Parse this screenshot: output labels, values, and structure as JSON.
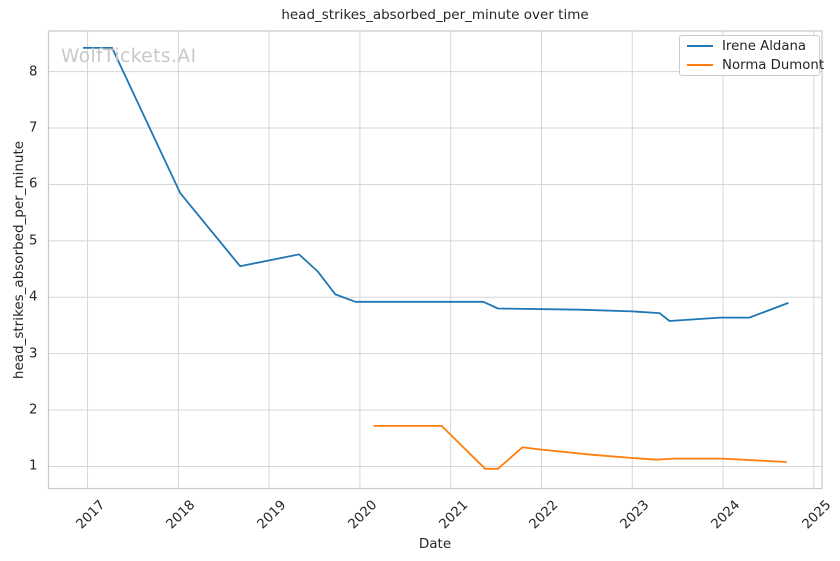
{
  "chart_data": {
    "type": "line",
    "title": "head_strikes_absorbed_per_minute over time",
    "xlabel": "Date",
    "ylabel": "head_strikes_absorbed_per_minute",
    "watermark": "WolfTickets.AI",
    "grid": true,
    "legend_position": "upper right",
    "xlim": [
      2016.57,
      2025.09
    ],
    "ylim": [
      0.61,
      8.72
    ],
    "x_ticks": [
      2017,
      2018,
      2019,
      2020,
      2021,
      2022,
      2023,
      2024,
      2025
    ],
    "y_ticks": [
      1,
      2,
      3,
      4,
      5,
      6,
      7,
      8
    ],
    "colors": {
      "grid": "#d6d6d6",
      "spine": "#c9c9c9",
      "text": "#262626",
      "watermark": "#c8c8c8"
    },
    "series": [
      {
        "name": "Irene Aldana",
        "color": "#1f77b4",
        "points": [
          [
            2016.95,
            8.42
          ],
          [
            2017.27,
            8.42
          ],
          [
            2018.02,
            5.85
          ],
          [
            2018.68,
            4.55
          ],
          [
            2019.33,
            4.76
          ],
          [
            2019.54,
            4.45
          ],
          [
            2019.73,
            4.05
          ],
          [
            2019.95,
            3.92
          ],
          [
            2021.36,
            3.92
          ],
          [
            2021.52,
            3.8
          ],
          [
            2022.42,
            3.78
          ],
          [
            2023.0,
            3.75
          ],
          [
            2023.3,
            3.72
          ],
          [
            2023.41,
            3.58
          ],
          [
            2023.97,
            3.64
          ],
          [
            2024.29,
            3.64
          ],
          [
            2024.72,
            3.9
          ]
        ]
      },
      {
        "name": "Norma Dumont",
        "color": "#ff7f0e",
        "points": [
          [
            2020.15,
            1.72
          ],
          [
            2020.9,
            1.72
          ],
          [
            2021.38,
            0.96
          ],
          [
            2021.52,
            0.96
          ],
          [
            2021.79,
            1.34
          ],
          [
            2022.0,
            1.3
          ],
          [
            2022.55,
            1.21
          ],
          [
            2023.0,
            1.15
          ],
          [
            2023.27,
            1.12
          ],
          [
            2023.45,
            1.14
          ],
          [
            2024.0,
            1.14
          ],
          [
            2024.35,
            1.11
          ],
          [
            2024.7,
            1.08
          ]
        ]
      }
    ]
  }
}
